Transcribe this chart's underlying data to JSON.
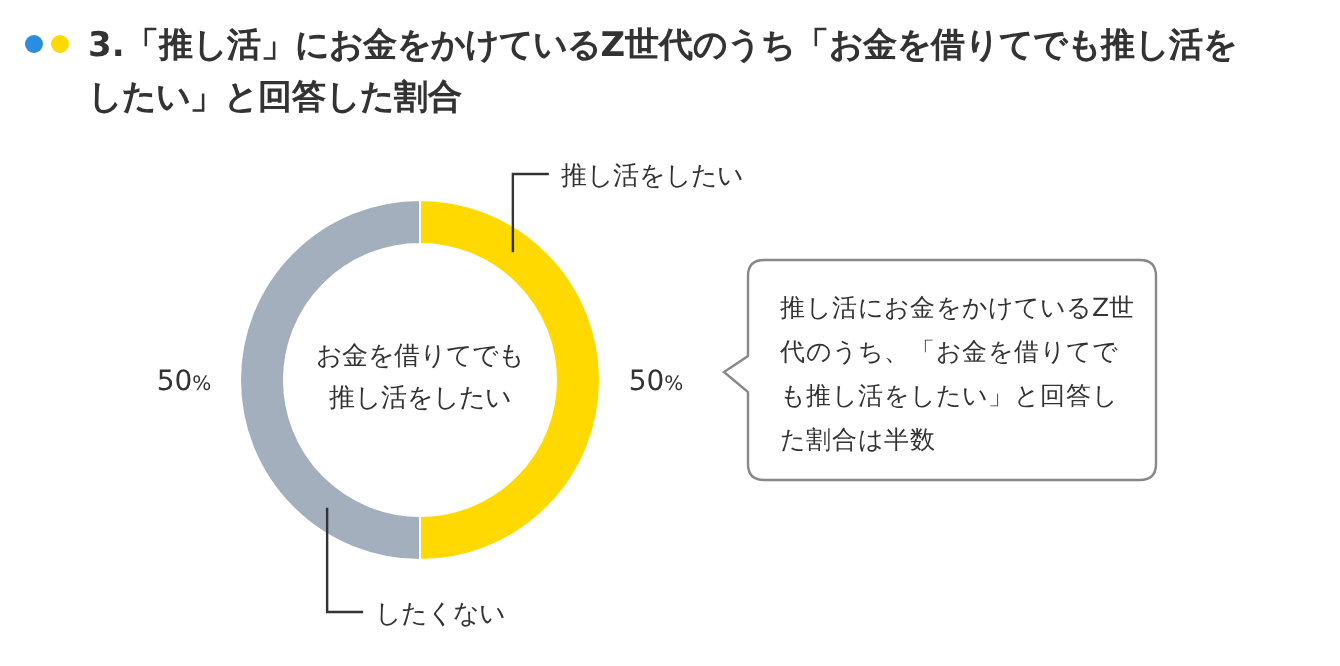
{
  "chart_data": {
    "type": "donut",
    "title": "3.「推し活」にお金をかけているZ世代のうち「お金を借りてでも推し活をしたい」と回答した割合",
    "categories": [
      "推し活をしたい",
      "したくない"
    ],
    "values": [
      50,
      50
    ],
    "colors": [
      "#ffd900",
      "#a3afbd"
    ],
    "value_labels": [
      "50%",
      "50%"
    ],
    "annotations": [
      "お金を借りてでも推し活をしたい",
      "推し活にお金をかけているZ世代のうち、「お金を借りてでも推し活をしたい」と回答した割合は半数"
    ]
  }
}
